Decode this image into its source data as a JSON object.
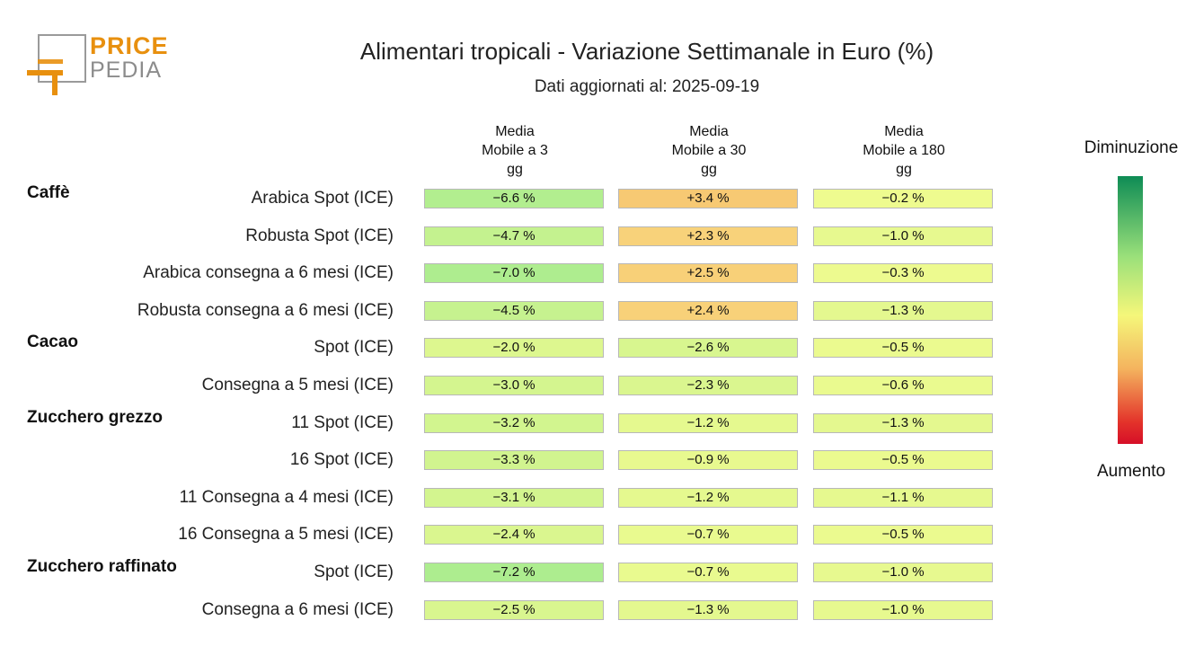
{
  "logo": {
    "word1": "PRICE",
    "word2": "PEDIA",
    "orange": "#e8900f",
    "gray": "#8c8c8c"
  },
  "title": "Alimentari tropicali - Variazione Settimanale in Euro (%)",
  "subtitle": "Dati aggiornati al: 2025-09-19",
  "legend": {
    "top": "Diminuzione",
    "bottom": "Aumento",
    "colors": [
      "#0e8c55",
      "#9ae07a",
      "#f5f77a",
      "#f4b35e",
      "#d60f28"
    ]
  },
  "chart_data": {
    "type": "heatmap",
    "title": "Alimentari tropicali - Variazione Settimanale in Euro (%)",
    "columns": [
      {
        "line1": "Media",
        "line2": "Mobile a 3",
        "line3": "gg"
      },
      {
        "line1": "Media",
        "line2": "Mobile a 30",
        "line3": "gg"
      },
      {
        "line1": "Media",
        "line2": "Mobile a 180",
        "line3": "gg"
      }
    ],
    "rows": [
      {
        "group": "Caffè",
        "label": "Arabica Spot (ICE)",
        "values": [
          "-6.6 %",
          "+3.4 %",
          "-0.2 %"
        ],
        "numbers": [
          -6.6,
          3.4,
          -0.2
        ]
      },
      {
        "group": "",
        "label": "Robusta Spot (ICE)",
        "values": [
          "-4.7 %",
          "+2.3 %",
          "-1.0 %"
        ],
        "numbers": [
          -4.7,
          2.3,
          -1.0
        ]
      },
      {
        "group": "",
        "label": "Arabica consegna a 6 mesi (ICE)",
        "values": [
          "-7.0 %",
          "+2.5 %",
          "-0.3 %"
        ],
        "numbers": [
          -7.0,
          2.5,
          -0.3
        ]
      },
      {
        "group": "",
        "label": "Robusta consegna a 6 mesi (ICE)",
        "values": [
          "-4.5 %",
          "+2.4 %",
          "-1.3 %"
        ],
        "numbers": [
          -4.5,
          2.4,
          -1.3
        ]
      },
      {
        "group": "Cacao",
        "label": "Spot (ICE)",
        "values": [
          "-2.0 %",
          "-2.6 %",
          "-0.5 %"
        ],
        "numbers": [
          -2.0,
          -2.6,
          -0.5
        ]
      },
      {
        "group": "",
        "label": "Consegna a 5 mesi (ICE)",
        "values": [
          "-3.0 %",
          "-2.3 %",
          "-0.6 %"
        ],
        "numbers": [
          -3.0,
          -2.3,
          -0.6
        ]
      },
      {
        "group": "Zucchero grezzo",
        "label": "11 Spot (ICE)",
        "values": [
          "-3.2 %",
          "-1.2 %",
          "-1.3 %"
        ],
        "numbers": [
          -3.2,
          -1.2,
          -1.3
        ]
      },
      {
        "group": "",
        "label": "16 Spot (ICE)",
        "values": [
          "-3.3 %",
          "-0.9 %",
          "-0.5 %"
        ],
        "numbers": [
          -3.3,
          -0.9,
          -0.5
        ]
      },
      {
        "group": "",
        "label": "11 Consegna a 4 mesi (ICE)",
        "values": [
          "-3.1 %",
          "-1.2 %",
          "-1.1 %"
        ],
        "numbers": [
          -3.1,
          -1.2,
          -1.1
        ]
      },
      {
        "group": "",
        "label": "16 Consegna a 5 mesi (ICE)",
        "values": [
          "-2.4 %",
          "-0.7 %",
          "-0.5 %"
        ],
        "numbers": [
          -2.4,
          -0.7,
          -0.5
        ]
      },
      {
        "group": "Zucchero raffinato",
        "label": "Spot (ICE)",
        "values": [
          "-7.2 %",
          "-0.7 %",
          "-1.0 %"
        ],
        "numbers": [
          -7.2,
          -0.7,
          -1.0
        ]
      },
      {
        "group": "",
        "label": "Consegna a 6 mesi (ICE)",
        "values": [
          "-2.5 %",
          "-1.3 %",
          "-1.0 %"
        ],
        "numbers": [
          -2.5,
          -1.3,
          -1.0
        ]
      }
    ]
  }
}
